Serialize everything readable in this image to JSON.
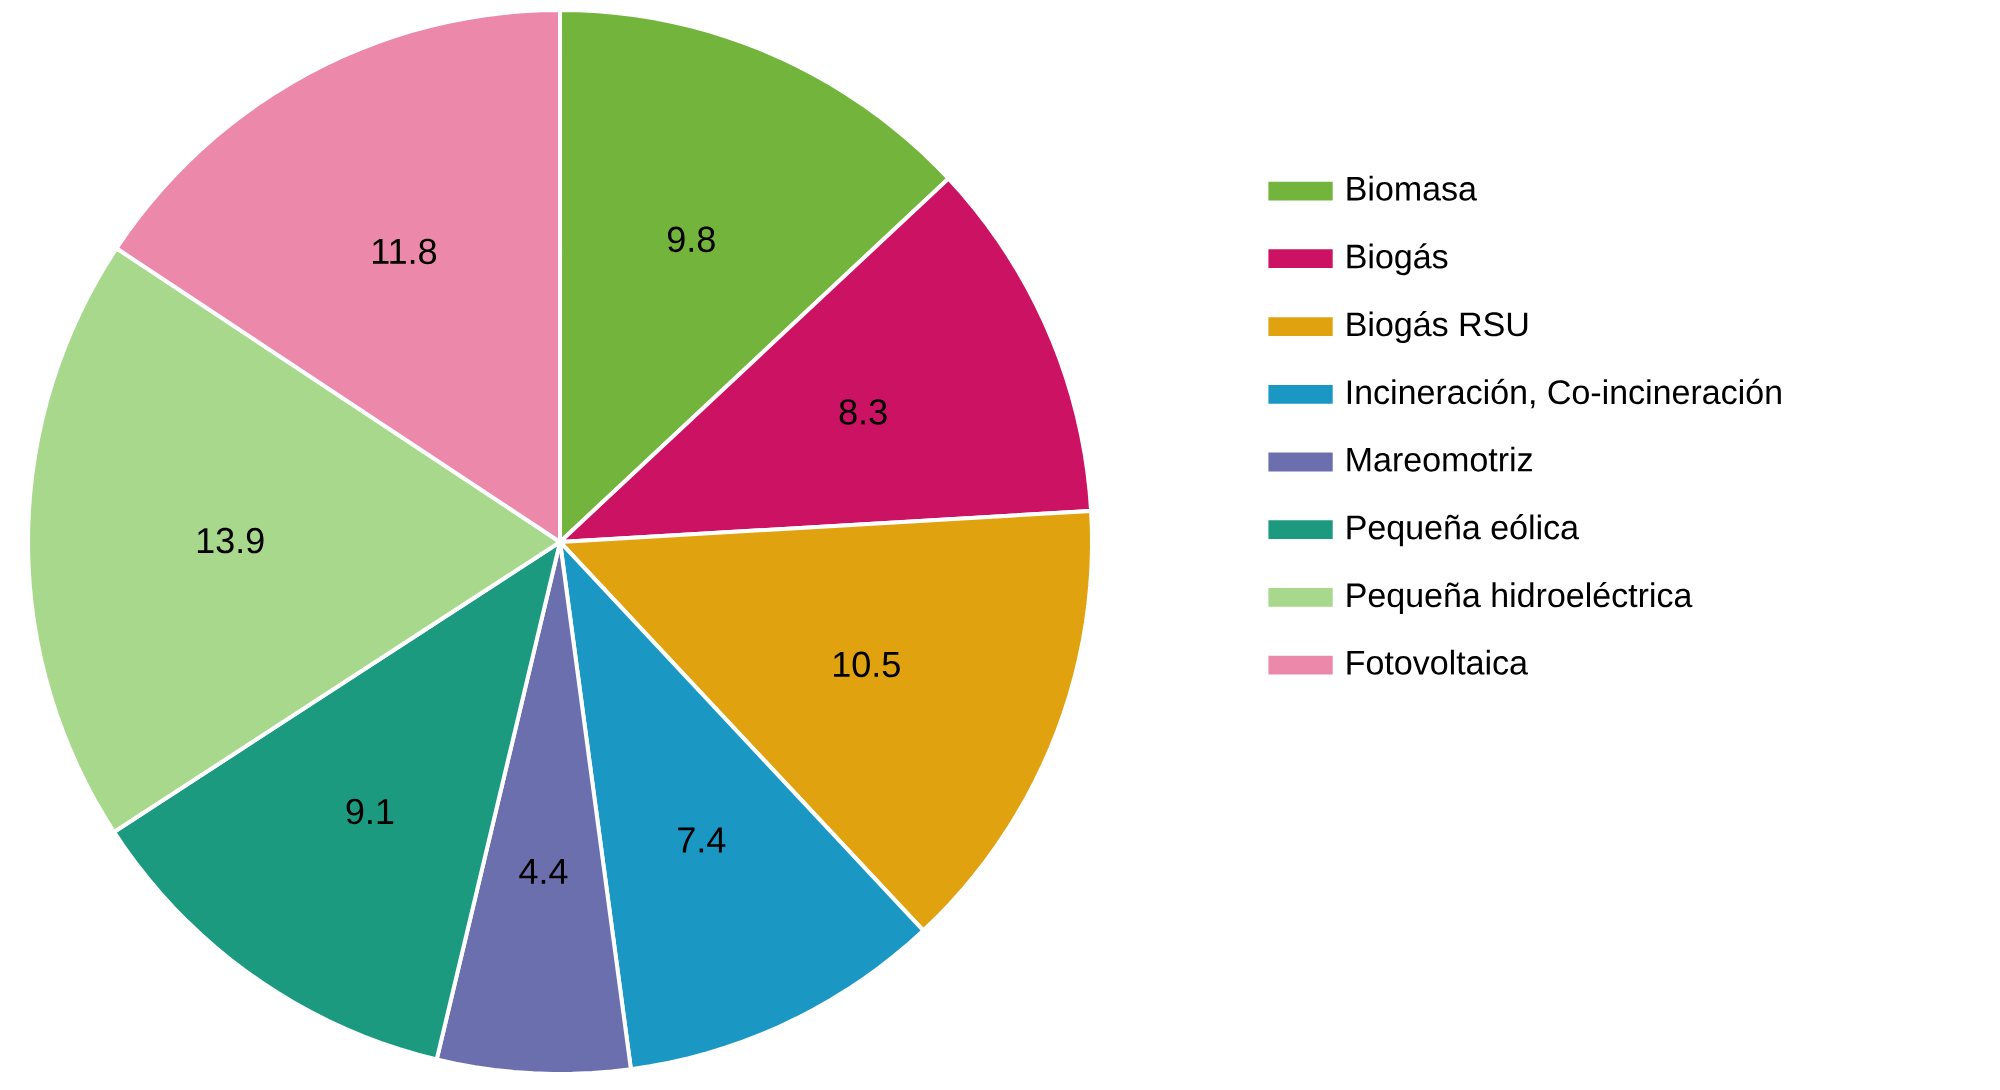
{
  "chart_data": {
    "type": "pie",
    "categories": [
      "Biomasa",
      "Biogás",
      "Biogás RSU",
      "Incineración, Co-incineración",
      "Mareomotriz",
      "Pequeña eólica",
      "Pequeña hidroeléctrica",
      "Fotovoltaica"
    ],
    "values": [
      9.8,
      8.3,
      10.5,
      7.4,
      4.4,
      9.1,
      13.9,
      11.8
    ],
    "colors": [
      "#72b43c",
      "#cc1262",
      "#e0a20f",
      "#1b97c4",
      "#6c6fae",
      "#1c9a80",
      "#a7d88c",
      "#ec88a9"
    ],
    "data_labels": true,
    "legend": "right"
  }
}
